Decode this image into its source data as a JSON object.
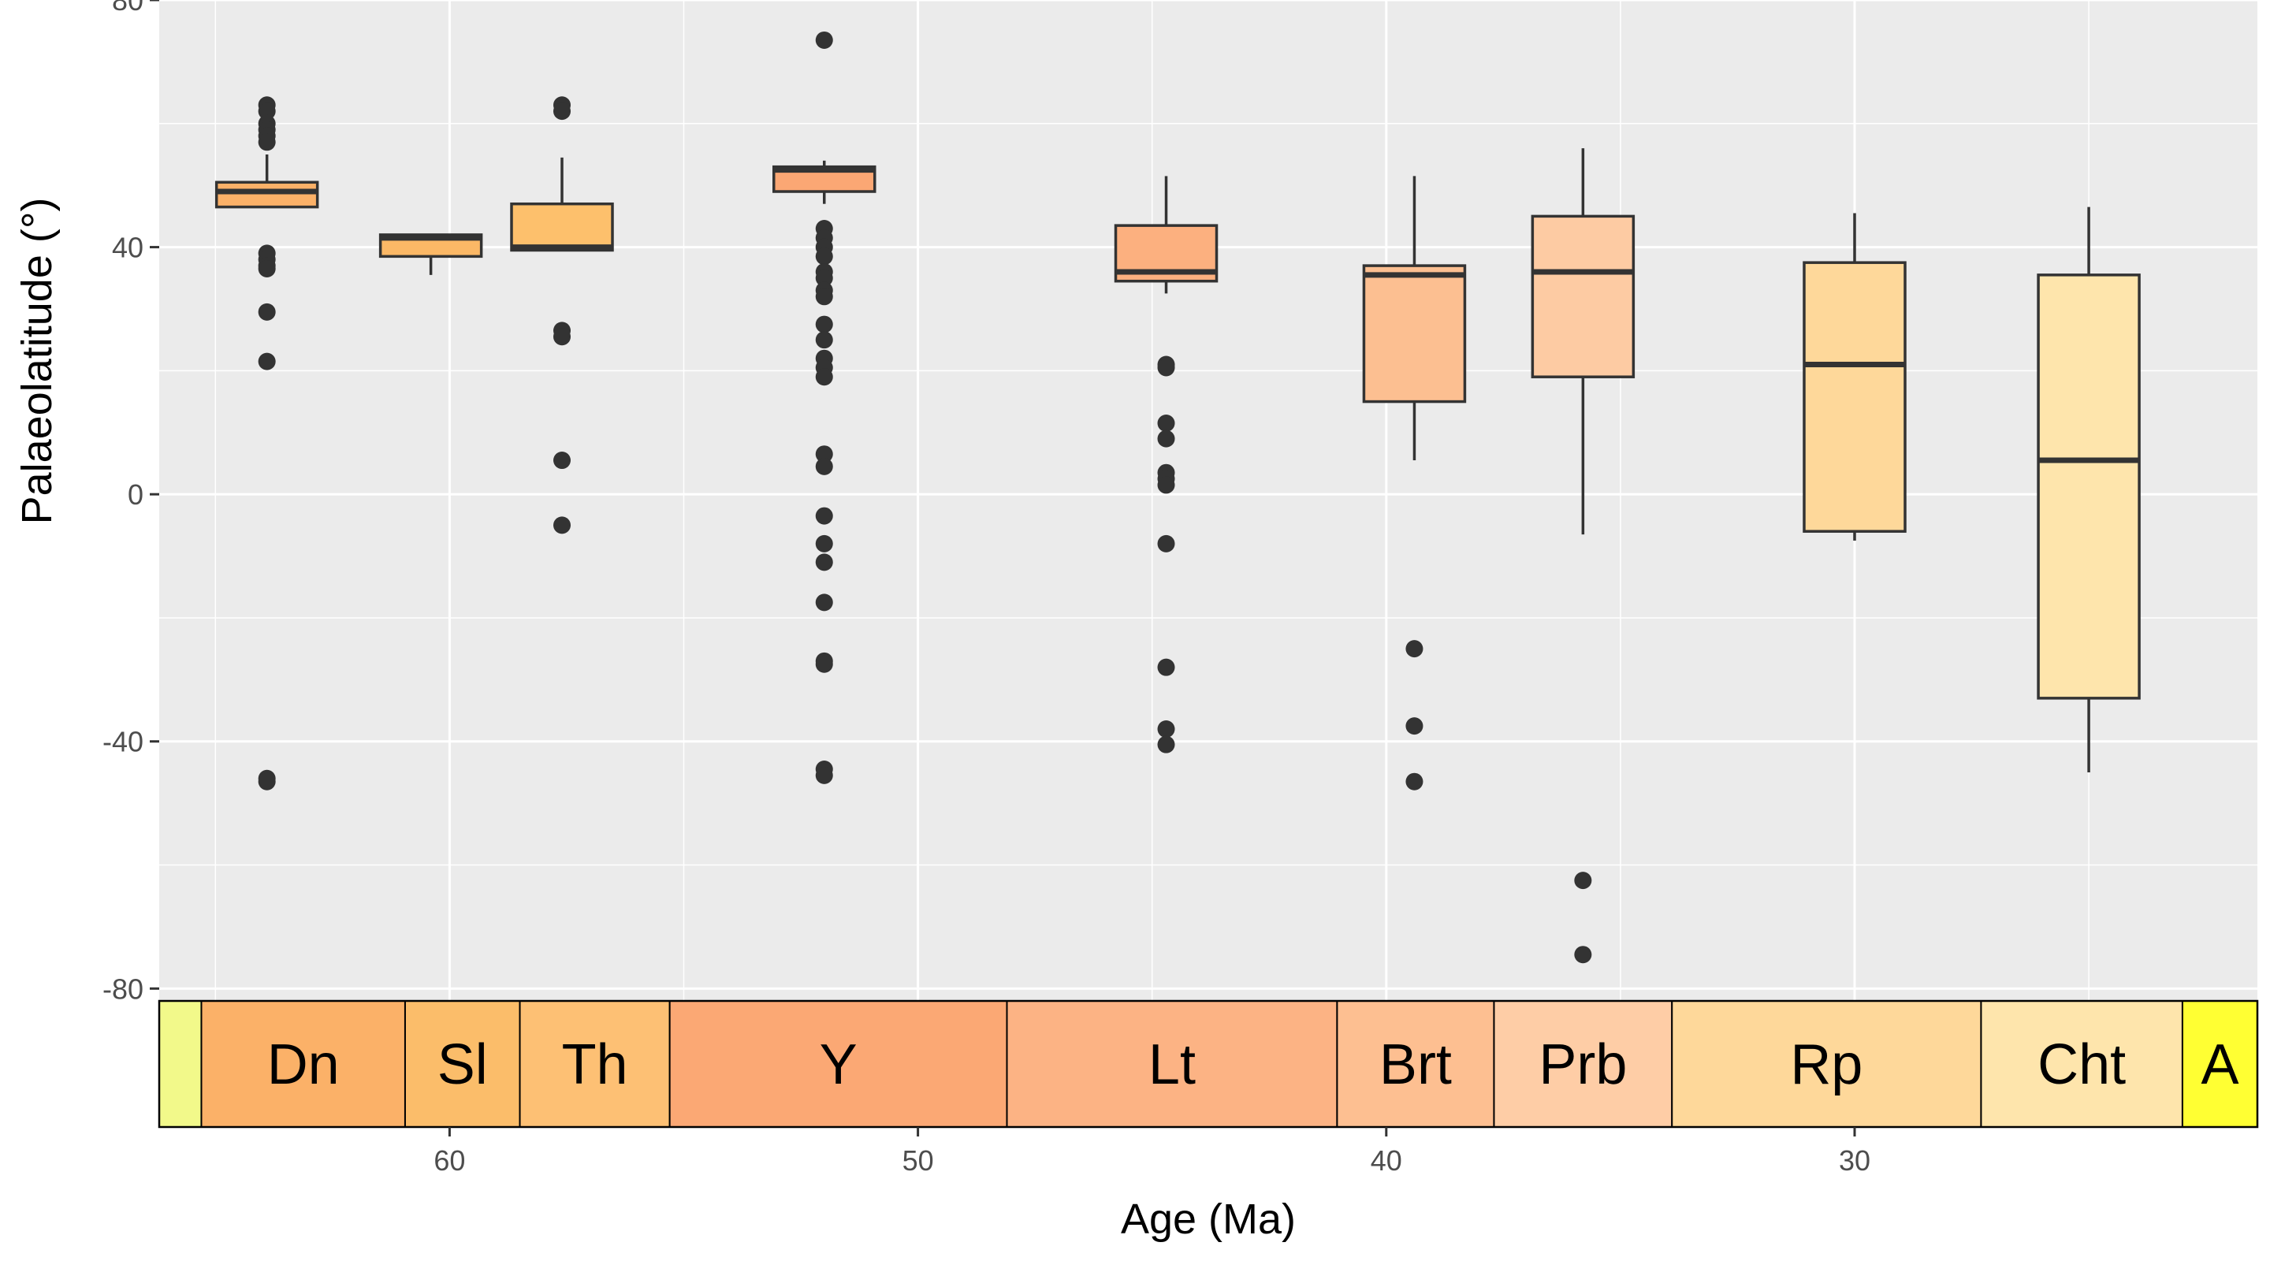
{
  "chart_data": {
    "type": "boxplot",
    "xlabel": "Age (Ma)",
    "ylabel": "Palaeolatitude (°)",
    "xlim": [
      66.2,
      21.4
    ],
    "ylim": [
      -82,
      80
    ],
    "x_reversed": true,
    "x_ticks": [
      60,
      50,
      40,
      30
    ],
    "y_ticks": [
      80,
      40,
      0,
      -40,
      -80
    ],
    "x_ticks_labels": [
      "60",
      "50",
      "40",
      "30"
    ],
    "y_ticks_labels": [
      "80",
      "40",
      "0",
      "-40",
      "-80"
    ],
    "grid": true,
    "boxes": [
      {
        "stage": "Dn",
        "x": 63.9,
        "fill": "#fbb168",
        "q1": 46.5,
        "median": 49,
        "q3": 50.5,
        "whisker_low": 46.5,
        "whisker_high": 55,
        "outliers": [
          63,
          62,
          60,
          59,
          58,
          57,
          39,
          38,
          37,
          36.5,
          29.5,
          21.5,
          -46,
          -46.5
        ]
      },
      {
        "stage": "Sl",
        "x": 60.4,
        "fill": "#fbb866",
        "q1": 38.5,
        "median": 41.5,
        "q3": 42,
        "whisker_low": 35.5,
        "whisker_high": 42,
        "outliers": []
      },
      {
        "stage": "Th",
        "x": 57.6,
        "fill": "#fdc06c",
        "q1": 39.5,
        "median": 40,
        "q3": 47,
        "whisker_low": 39.5,
        "whisker_high": 54.5,
        "outliers": [
          63,
          62,
          26.5,
          25.5,
          5.5,
          -5
        ]
      },
      {
        "stage": "Y",
        "x": 52.0,
        "fill": "#fba774",
        "q1": 49,
        "median": 52.5,
        "q3": 53,
        "whisker_low": 47,
        "whisker_high": 54,
        "outliers": [
          73.5,
          43,
          41.5,
          40,
          38.5,
          36,
          35,
          33,
          32,
          27.5,
          25,
          22,
          20.5,
          19,
          6.5,
          4.5,
          -3.5,
          -8,
          -11,
          -17.5,
          -27,
          -27.5,
          -44.5,
          -45.5
        ]
      },
      {
        "stage": "Lt",
        "x": 44.7,
        "fill": "#fcb07f",
        "q1": 34.5,
        "median": 36,
        "q3": 43.5,
        "whisker_low": 32.5,
        "whisker_high": 51.5,
        "outliers": [
          21,
          20.5,
          11.5,
          9,
          3.5,
          2.5,
          1.5,
          -8,
          -28,
          -38,
          -40.5
        ]
      },
      {
        "stage": "Brt",
        "x": 39.4,
        "fill": "#fcbf91",
        "q1": 15,
        "median": 35.5,
        "q3": 37,
        "whisker_low": 5.5,
        "whisker_high": 51.5,
        "outliers": [
          -25,
          -37.5,
          -46.5
        ]
      },
      {
        "stage": "Prb",
        "x": 35.8,
        "fill": "#fdcba3",
        "q1": 19,
        "median": 36,
        "q3": 45,
        "whisker_low": -6.5,
        "whisker_high": 56,
        "outliers": [
          -62.5,
          -74.5
        ]
      },
      {
        "stage": "Rp",
        "x": 30.0,
        "fill": "#fed89a",
        "q1": -6,
        "median": 21,
        "q3": 37.5,
        "whisker_low": -7.5,
        "whisker_high": 45.5,
        "outliers": []
      },
      {
        "stage": "Cht",
        "x": 25.0,
        "fill": "#fee5ac",
        "q1": -33,
        "median": 5.5,
        "q3": 35.5,
        "whisker_low": -45,
        "whisker_high": 46.5,
        "outliers": []
      }
    ],
    "stages": [
      {
        "label": "",
        "from": 66.2,
        "to": 65.3,
        "fill": "#f2f98a"
      },
      {
        "label": "Dn",
        "from": 65.3,
        "to": 60.95,
        "fill": "#fbb168"
      },
      {
        "label": "Sl",
        "from": 60.95,
        "to": 58.5,
        "fill": "#fbbd6a"
      },
      {
        "label": "Th",
        "from": 58.5,
        "to": 55.3,
        "fill": "#fdc074"
      },
      {
        "label": "Y",
        "from": 55.3,
        "to": 48.1,
        "fill": "#fba874"
      },
      {
        "label": "Lt",
        "from": 48.1,
        "to": 41.05,
        "fill": "#fcb384"
      },
      {
        "label": "Brt",
        "from": 41.05,
        "to": 37.7,
        "fill": "#fdbf91"
      },
      {
        "label": "Prb",
        "from": 37.7,
        "to": 33.9,
        "fill": "#fecda6"
      },
      {
        "label": "Rp",
        "from": 33.9,
        "to": 27.3,
        "fill": "#fed89a"
      },
      {
        "label": "Cht",
        "from": 27.3,
        "to": 23.0,
        "fill": "#fee5ac"
      },
      {
        "label": "A",
        "from": 23.0,
        "to": 21.4,
        "fill": "#ffff33"
      }
    ]
  }
}
